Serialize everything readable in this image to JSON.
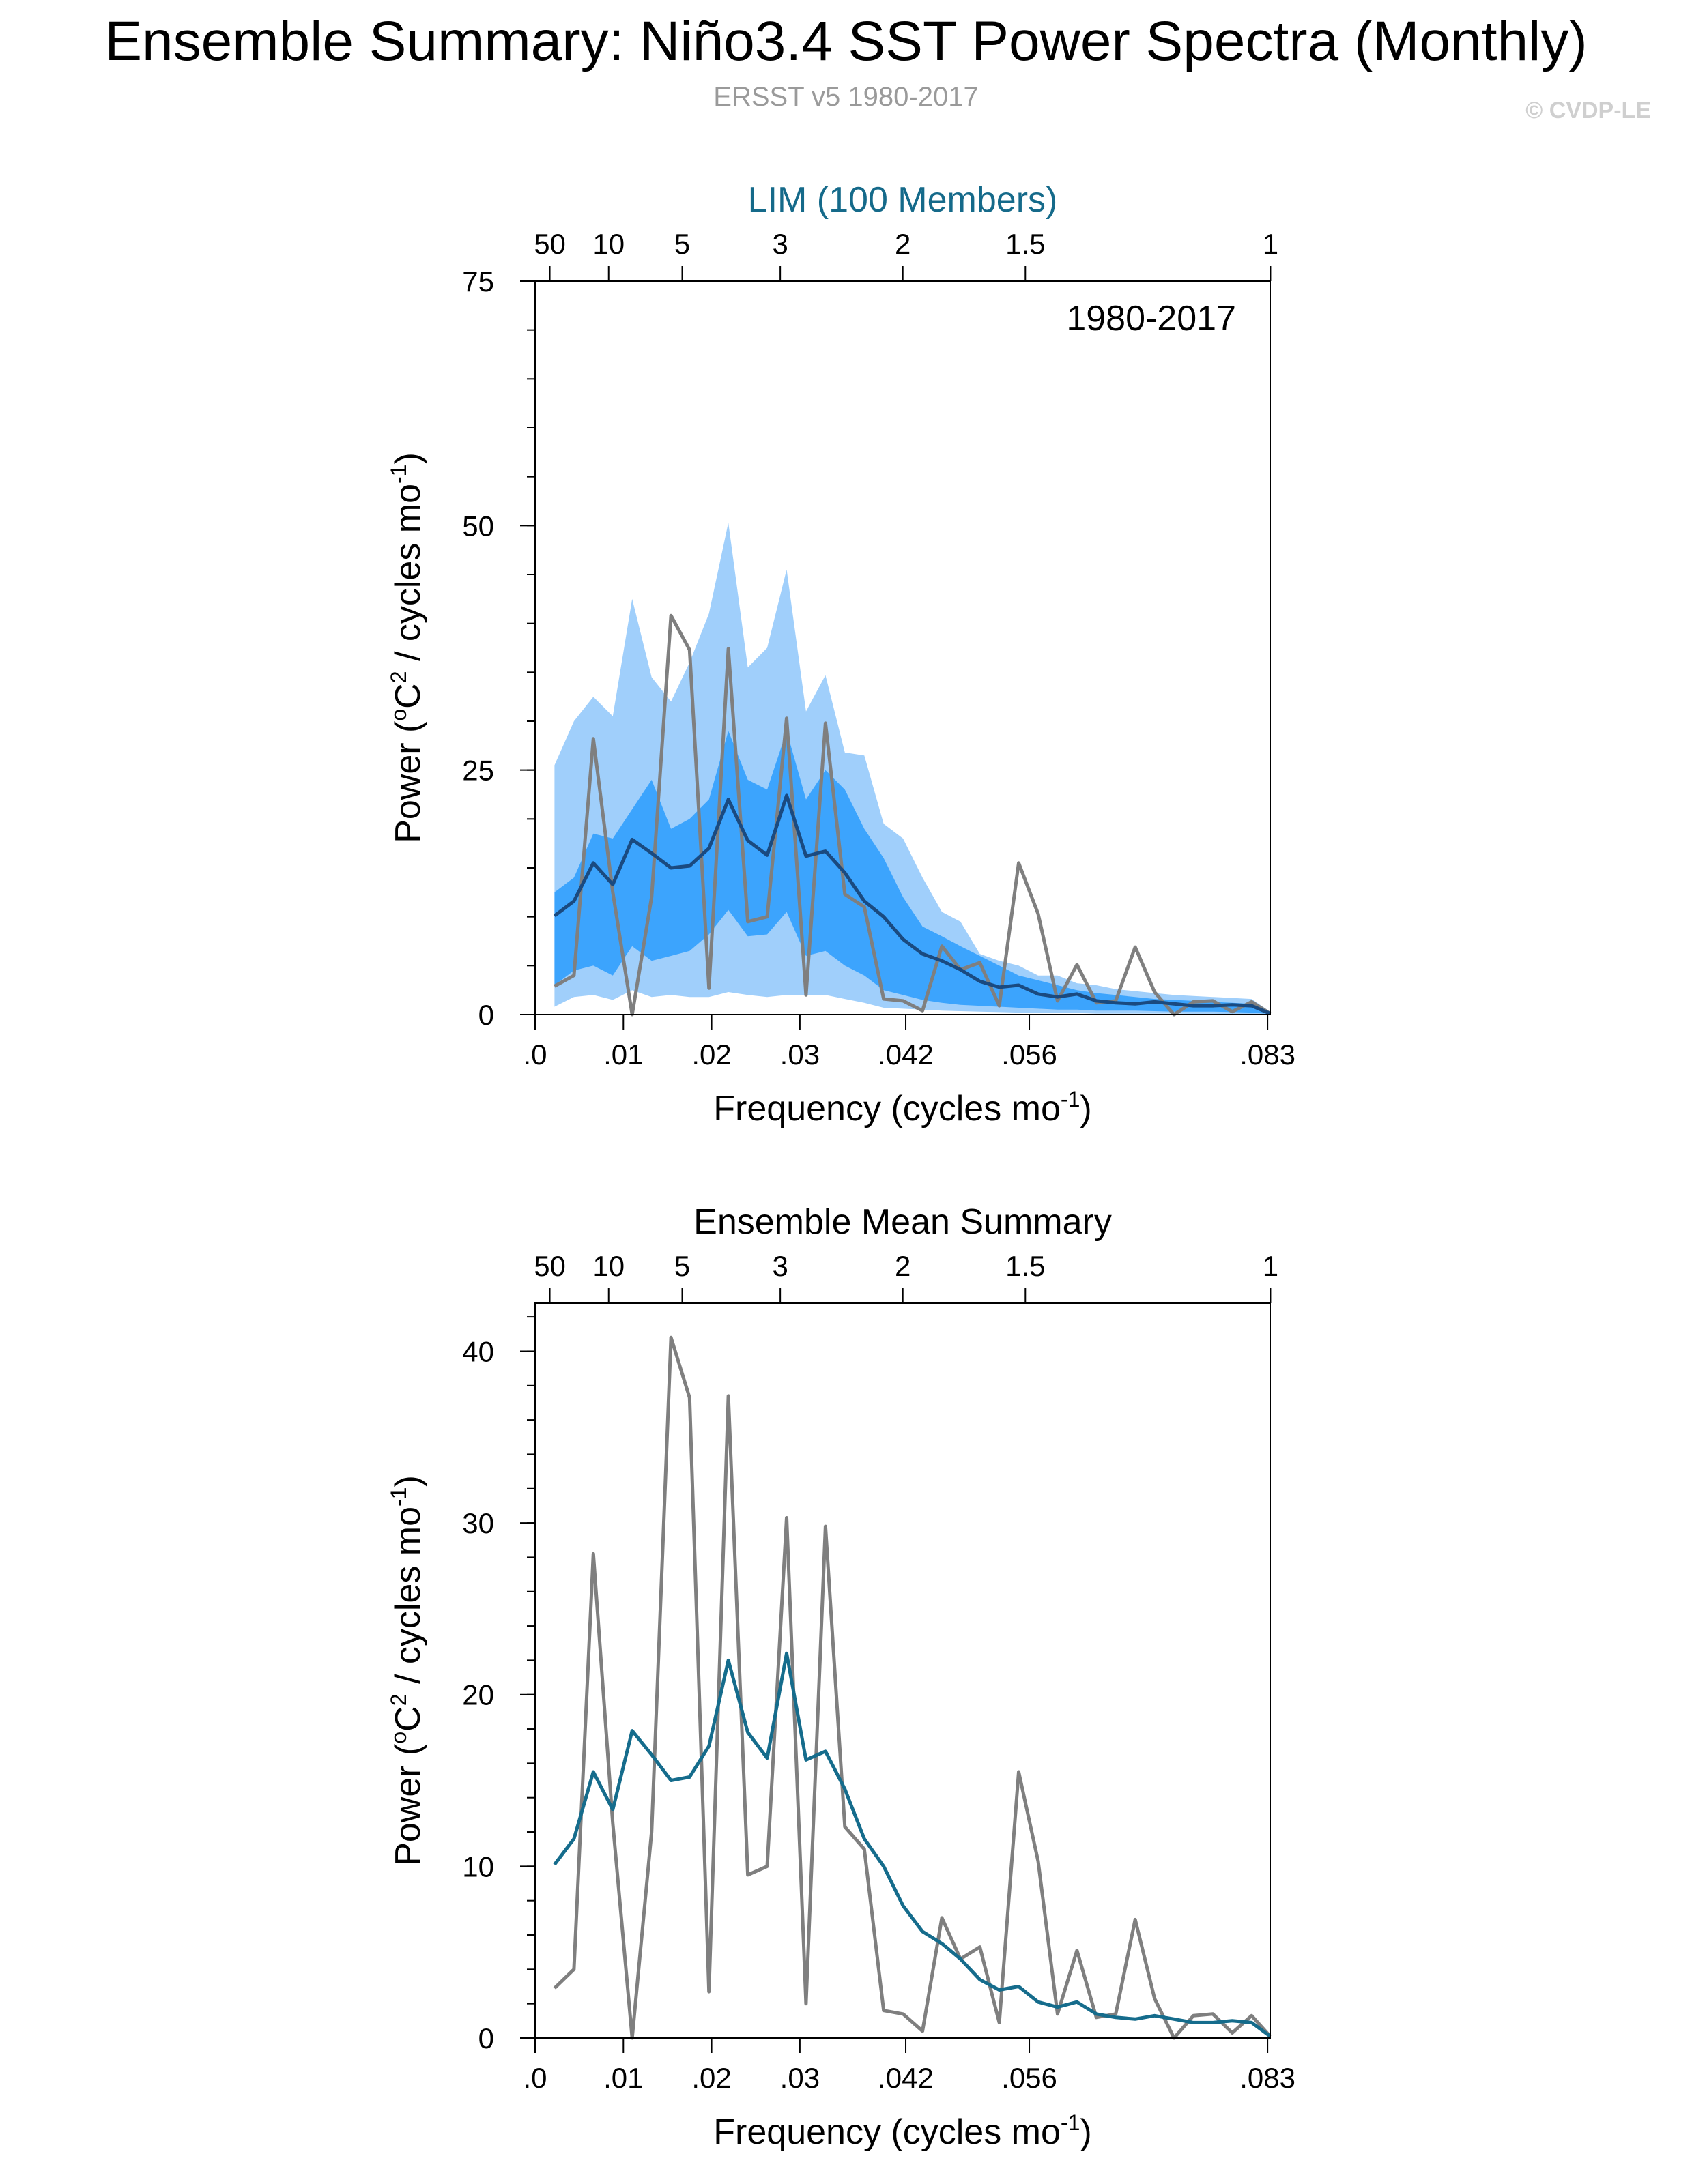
{
  "title": "Ensemble Summary: Niño3.4 SST Power Spectra (Monthly)",
  "subtitle": "ERSST v5 1980-2017",
  "copyright": "© CVDP-LE",
  "colors": {
    "band_outer": "#a0cffb",
    "band_inner": "#3ca4fd",
    "ens_mean_top": "#1a4a80",
    "ens_mean_bottom": "#156c8c",
    "observed": "#7f7f7f",
    "top_title": "#156a8a"
  },
  "chart_data": [
    {
      "type": "line",
      "panel_title": "LIM (100 Members)",
      "annotation": "1980-2017",
      "xlabel": "Frequency (cycles mo",
      "xlabel_sup": "-1",
      "xlabel_end": ")",
      "ylabel_pre": "Power (",
      "ylabel_sup1": "o",
      "ylabel_mid": "C",
      "ylabel_sup2": "2",
      "ylabel_post": " / cycles mo",
      "ylabel_sup3": "-1",
      "ylabel_end": ")",
      "xlim": [
        0,
        0.0833
      ],
      "ylim": [
        0,
        75
      ],
      "yticks": [
        0,
        25,
        50,
        75
      ],
      "yticks_labels": [
        "0",
        "25",
        "50",
        "75"
      ],
      "xticks": [
        0,
        0.01,
        0.02,
        0.03,
        0.042,
        0.056,
        0.083
      ],
      "xticks_labels": [
        ".0",
        ".01",
        ".02",
        ".03",
        ".042",
        ".056",
        ".083"
      ],
      "top_period_ticks": [
        50,
        10,
        5,
        3,
        2,
        1.5,
        1
      ],
      "top_period_labels": [
        "50",
        "10",
        "5",
        "3",
        "2",
        "1.5",
        "1"
      ],
      "x": [
        0.0022,
        0.0044,
        0.0066,
        0.0088,
        0.011,
        0.0132,
        0.0154,
        0.0175,
        0.0197,
        0.0219,
        0.0241,
        0.0263,
        0.0285,
        0.0307,
        0.0329,
        0.0351,
        0.0373,
        0.0395,
        0.0417,
        0.0439,
        0.0461,
        0.0482,
        0.0504,
        0.0526,
        0.0548,
        0.057,
        0.0592,
        0.0614,
        0.0636,
        0.0658,
        0.068,
        0.0702,
        0.0724,
        0.0746,
        0.0768,
        0.079,
        0.0812,
        0.0833
      ],
      "bands": {
        "outer_upper": [
          25.5,
          30,
          32.5,
          30.5,
          42.5,
          34.5,
          32,
          36,
          41,
          50.3,
          35.5,
          37.5,
          45.5,
          31,
          34.7,
          26.8,
          26.5,
          19.5,
          18,
          14,
          10.5,
          9.5,
          6.2,
          5.5,
          5,
          4,
          4,
          3.2,
          3,
          2.6,
          2.4,
          2.2,
          2,
          1.9,
          1.8,
          1.7,
          1.6,
          0.3
        ],
        "inner_upper": [
          12.5,
          14,
          18.5,
          18,
          21,
          24,
          19,
          20,
          22,
          29,
          24,
          23,
          29,
          22,
          25,
          23,
          19,
          16,
          12,
          9,
          8,
          7,
          6,
          5,
          4,
          3.5,
          3,
          2.5,
          2.2,
          2,
          1.8,
          1.6,
          1.5,
          1.4,
          1.3,
          1.2,
          1.1,
          0.2
        ],
        "inner_lower": [
          3,
          4.5,
          5,
          4,
          7,
          5.5,
          6,
          6.5,
          8.2,
          10.7,
          8,
          8.2,
          10.5,
          6,
          6.5,
          5,
          4,
          2.5,
          2,
          1.5,
          1.2,
          1,
          0.9,
          0.8,
          0.7,
          0.6,
          0.5,
          0.5,
          0.4,
          0.4,
          0.4,
          0.35,
          0.3,
          0.3,
          0.3,
          0.25,
          0.2,
          0.05
        ],
        "outer_lower": [
          0.8,
          1.8,
          2,
          1.5,
          2.5,
          1.8,
          2,
          1.8,
          1.8,
          2.3,
          2,
          1.8,
          2,
          2,
          2,
          1.6,
          1.2,
          0.7,
          0.6,
          0.5,
          0.4,
          0.35,
          0.3,
          0.25,
          0.2,
          0.2,
          0.15,
          0.15,
          0.1,
          0.1,
          0.1,
          0.1,
          0.1,
          0.08,
          0.08,
          0.05,
          0.05,
          0.0
        ]
      },
      "series": [
        {
          "role": "ensemble_mean",
          "values": [
            10.1,
            11.6,
            15.5,
            13.3,
            17.9,
            16.5,
            15,
            15.2,
            17,
            22,
            17.8,
            16.3,
            22.4,
            16.2,
            16.7,
            14.5,
            11.6,
            10,
            7.7,
            6.2,
            5.5,
            4.6,
            3.4,
            2.8,
            3,
            2.1,
            1.8,
            2.1,
            1.4,
            1.2,
            1.1,
            1.3,
            1.1,
            0.9,
            0.9,
            1,
            0.9,
            0.1
          ]
        },
        {
          "role": "observed",
          "values": [
            2.9,
            4,
            28.2,
            12.5,
            0,
            12,
            40.8,
            37.3,
            2.7,
            37.4,
            9.5,
            10,
            30.3,
            2,
            29.8,
            12.3,
            11,
            1.6,
            1.4,
            0.4,
            7,
            4.6,
            5.3,
            0.9,
            15.5,
            10.3,
            1.4,
            5.1,
            1.2,
            1.4,
            6.9,
            2.3,
            0,
            1.3,
            1.4,
            0.3,
            1.3,
            0.1
          ]
        }
      ]
    },
    {
      "type": "line",
      "panel_title": "Ensemble Mean Summary",
      "xlabel": "Frequency (cycles mo",
      "xlabel_sup": "-1",
      "xlabel_end": ")",
      "ylabel_pre": "Power (",
      "ylabel_sup1": "o",
      "ylabel_mid": "C",
      "ylabel_sup2": "2",
      "ylabel_post": " / cycles mo",
      "ylabel_sup3": "-1",
      "ylabel_end": ")",
      "xlim": [
        0,
        0.0833
      ],
      "ylim": [
        0,
        42.8
      ],
      "yticks": [
        0,
        10,
        20,
        30,
        40
      ],
      "yticks_labels": [
        "0",
        "10",
        "20",
        "30",
        "40"
      ],
      "xticks": [
        0,
        0.01,
        0.02,
        0.03,
        0.042,
        0.056,
        0.083
      ],
      "xticks_labels": [
        ".0",
        ".01",
        ".02",
        ".03",
        ".042",
        ".056",
        ".083"
      ],
      "top_period_ticks": [
        50,
        10,
        5,
        3,
        2,
        1.5,
        1
      ],
      "top_period_labels": [
        "50",
        "10",
        "5",
        "3",
        "2",
        "1.5",
        "1"
      ],
      "x": [
        0.0022,
        0.0044,
        0.0066,
        0.0088,
        0.011,
        0.0132,
        0.0154,
        0.0175,
        0.0197,
        0.0219,
        0.0241,
        0.0263,
        0.0285,
        0.0307,
        0.0329,
        0.0351,
        0.0373,
        0.0395,
        0.0417,
        0.0439,
        0.0461,
        0.0482,
        0.0504,
        0.0526,
        0.0548,
        0.057,
        0.0592,
        0.0614,
        0.0636,
        0.0658,
        0.068,
        0.0702,
        0.0724,
        0.0746,
        0.0768,
        0.079,
        0.0812,
        0.0833
      ],
      "series": [
        {
          "role": "ensemble_mean",
          "values": [
            10.1,
            11.6,
            15.5,
            13.3,
            17.9,
            16.5,
            15,
            15.2,
            17,
            22,
            17.8,
            16.3,
            22.4,
            16.2,
            16.7,
            14.5,
            11.6,
            10,
            7.7,
            6.2,
            5.5,
            4.6,
            3.4,
            2.8,
            3,
            2.1,
            1.8,
            2.1,
            1.4,
            1.2,
            1.1,
            1.3,
            1.1,
            0.9,
            0.9,
            1,
            0.9,
            0.1
          ]
        },
        {
          "role": "observed",
          "values": [
            2.9,
            4,
            28.2,
            12.5,
            0,
            12,
            40.8,
            37.3,
            2.7,
            37.4,
            9.5,
            10,
            30.3,
            2,
            29.8,
            12.3,
            11,
            1.6,
            1.4,
            0.4,
            7,
            4.6,
            5.3,
            0.9,
            15.5,
            10.3,
            1.4,
            5.1,
            1.2,
            1.4,
            6.9,
            2.3,
            0,
            1.3,
            1.4,
            0.3,
            1.3,
            0.1
          ]
        }
      ]
    }
  ]
}
